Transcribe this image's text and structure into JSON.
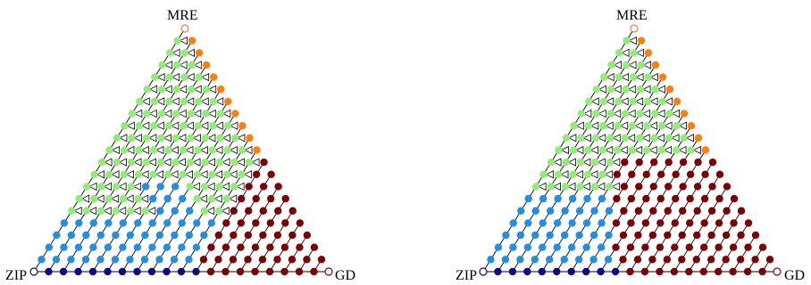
{
  "panels": [
    {
      "vertex_labels": {
        "top": "MRE",
        "left": "ZIP",
        "right": "GD"
      },
      "top_ring_color": "#d98b4d",
      "right_ring_color": "#8b0000",
      "left_ring_color": "#0b0b8a"
    },
    {
      "vertex_labels": {
        "top": "MRE",
        "left": "ZIP",
        "right": "GD"
      },
      "top_ring_color": "#d98b4d",
      "right_ring_color": "#8b0000",
      "left_ring_color": "#0b0b8a"
    }
  ],
  "colors": {
    "mre": "#ff7f0e",
    "green": "#90ee77",
    "blue": "#1f8fe8",
    "navy": "#0b0b8a",
    "maroon": "#800000"
  }
}
